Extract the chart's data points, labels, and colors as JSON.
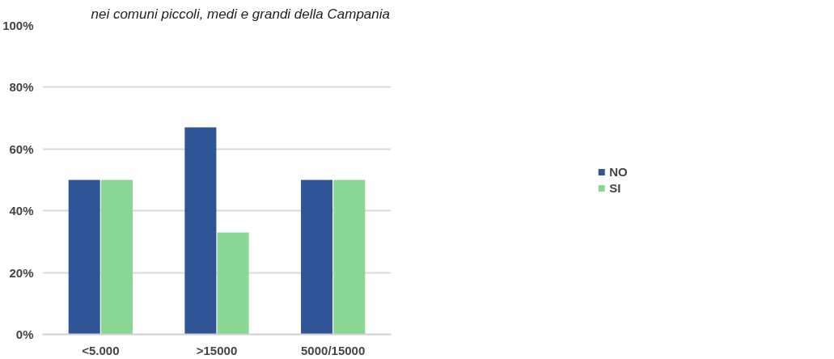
{
  "chart_data": {
    "type": "bar",
    "title": "nei comuni piccoli, medi e grandi della Campania",
    "categories": [
      "<5.000",
      ">15000",
      "5000/15000"
    ],
    "series": [
      {
        "name": "NO",
        "color": "#2f5597",
        "values": [
          50,
          67,
          50
        ]
      },
      {
        "name": "SI",
        "color": "#8ad795",
        "values": [
          50,
          33,
          50
        ]
      }
    ],
    "ylim": [
      0,
      100
    ],
    "yticks": [
      {
        "value": 0,
        "label": "0%"
      },
      {
        "value": 20,
        "label": "20%"
      },
      {
        "value": 40,
        "label": "40%"
      },
      {
        "value": 60,
        "label": "60%"
      },
      {
        "value": 80,
        "label": "80%"
      },
      {
        "value": 100,
        "label": "100%"
      }
    ],
    "grid": "y",
    "legend": "right"
  }
}
